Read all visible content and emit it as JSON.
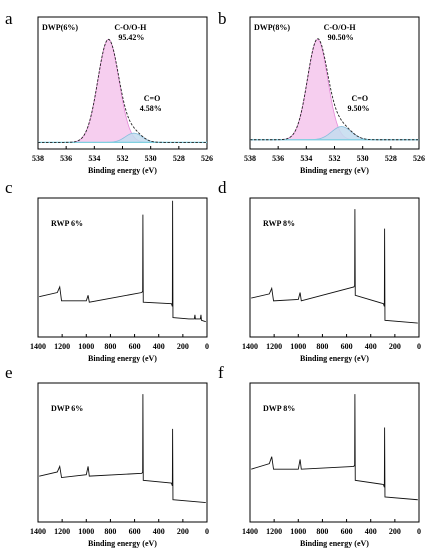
{
  "colors": {
    "pink_fill": "#f5c6ec",
    "pink_stroke": "#e48bd8",
    "blue_fill": "#c3dcee",
    "blue_stroke": "#86bddc",
    "baseline": "#7fd0e0",
    "envelope": "#222222"
  },
  "chart_data": [
    {
      "panel": "a",
      "type": "area",
      "title": "DWP(6%)",
      "xlabel": "Binding energy (eV)",
      "ylabel": "",
      "xlim": [
        538,
        526
      ],
      "x_reversed": true,
      "y_axis_ticks": false,
      "xticks": [
        "538",
        "536",
        "534",
        "532",
        "530",
        "528",
        "526"
      ],
      "baseline": 0.05,
      "peaks": [
        {
          "label": "C-O/O-H",
          "percent": "95.42%",
          "center": 533.0,
          "height": 0.78,
          "sigma": 0.75,
          "color": "pink"
        },
        {
          "label": "C=O",
          "percent": "4.58%",
          "center": 531.2,
          "height": 0.07,
          "sigma": 0.6,
          "color": "blue"
        }
      ]
    },
    {
      "panel": "b",
      "type": "area",
      "title": "DWP(8%)",
      "xlabel": "Binding energy (eV)",
      "ylabel": "",
      "xlim": [
        538,
        526
      ],
      "x_reversed": true,
      "y_axis_ticks": false,
      "xticks": [
        "538",
        "536",
        "534",
        "532",
        "530",
        "528",
        "526"
      ],
      "baseline": 0.07,
      "peaks": [
        {
          "label": "C-O/O-H",
          "percent": "90.50%",
          "center": 533.2,
          "height": 0.76,
          "sigma": 0.72,
          "color": "pink"
        },
        {
          "label": "C=O",
          "percent": "9.50%",
          "center": 531.5,
          "height": 0.1,
          "sigma": 0.7,
          "color": "blue"
        }
      ]
    },
    {
      "panel": "c",
      "type": "line",
      "title": "RWP 6%",
      "xlabel": "Binding energy (eV)",
      "ylabel": "",
      "xlim": [
        1400,
        0
      ],
      "x_reversed": true,
      "y_axis_ticks": false,
      "xticks": [
        "1400",
        "1200",
        "1000",
        "800",
        "600",
        "400",
        "200",
        "0"
      ],
      "spectrum": [
        [
          1390,
          0.29
        ],
        [
          1240,
          0.32
        ],
        [
          1220,
          0.36
        ],
        [
          1205,
          0.26
        ],
        [
          1000,
          0.26
        ],
        [
          985,
          0.3
        ],
        [
          975,
          0.25
        ],
        [
          540,
          0.32
        ],
        [
          533,
          0.33
        ],
        [
          531,
          0.88
        ],
        [
          528,
          0.25
        ],
        [
          295,
          0.24
        ],
        [
          287,
          0.22
        ],
        [
          285,
          0.98
        ],
        [
          282,
          0.14
        ],
        [
          150,
          0.13
        ],
        [
          105,
          0.13
        ],
        [
          100,
          0.16
        ],
        [
          96,
          0.13
        ],
        [
          55,
          0.13
        ],
        [
          50,
          0.16
        ],
        [
          46,
          0.12
        ],
        [
          10,
          0.11
        ]
      ]
    },
    {
      "panel": "d",
      "type": "line",
      "title": "RWP 8%",
      "xlabel": "Binding energy (eV)",
      "ylabel": "",
      "xlim": [
        1400,
        0
      ],
      "x_reversed": true,
      "y_axis_ticks": false,
      "xticks": [
        "1400",
        "1200",
        "1000",
        "800",
        "600",
        "400",
        "200",
        "0"
      ],
      "spectrum": [
        [
          1390,
          0.28
        ],
        [
          1240,
          0.31
        ],
        [
          1220,
          0.35
        ],
        [
          1205,
          0.26
        ],
        [
          1000,
          0.27
        ],
        [
          985,
          0.32
        ],
        [
          975,
          0.26
        ],
        [
          540,
          0.36
        ],
        [
          533,
          0.37
        ],
        [
          531,
          0.92
        ],
        [
          528,
          0.3
        ],
        [
          295,
          0.24
        ],
        [
          287,
          0.22
        ],
        [
          285,
          0.78
        ],
        [
          282,
          0.12
        ],
        [
          10,
          0.1
        ]
      ]
    },
    {
      "panel": "e",
      "type": "line",
      "title": "DWP 6%",
      "xlabel": "Binding energy (eV)",
      "ylabel": "",
      "xlim": [
        1400,
        0
      ],
      "x_reversed": true,
      "y_axis_ticks": false,
      "xticks": [
        "1400",
        "1200",
        "1000",
        "800",
        "600",
        "400",
        "200",
        "0"
      ],
      "spectrum": [
        [
          1390,
          0.33
        ],
        [
          1240,
          0.36
        ],
        [
          1220,
          0.4
        ],
        [
          1205,
          0.32
        ],
        [
          1000,
          0.34
        ],
        [
          985,
          0.4
        ],
        [
          975,
          0.33
        ],
        [
          540,
          0.35
        ],
        [
          533,
          0.36
        ],
        [
          531,
          0.92
        ],
        [
          528,
          0.3
        ],
        [
          295,
          0.28
        ],
        [
          287,
          0.26
        ],
        [
          285,
          0.67
        ],
        [
          282,
          0.16
        ],
        [
          10,
          0.14
        ]
      ]
    },
    {
      "panel": "f",
      "type": "line",
      "title": "DWP 8%",
      "xlabel": "Binding energy (eV)",
      "ylabel": "",
      "xlim": [
        1400,
        0
      ],
      "x_reversed": true,
      "y_axis_ticks": false,
      "xticks": [
        "1400",
        "1200",
        "1000",
        "800",
        "600",
        "400",
        "200",
        "0"
      ],
      "spectrum": [
        [
          1390,
          0.38
        ],
        [
          1240,
          0.42
        ],
        [
          1220,
          0.47
        ],
        [
          1205,
          0.38
        ],
        [
          1000,
          0.38
        ],
        [
          985,
          0.45
        ],
        [
          975,
          0.38
        ],
        [
          540,
          0.4
        ],
        [
          533,
          0.41
        ],
        [
          531,
          0.92
        ],
        [
          528,
          0.3
        ],
        [
          295,
          0.27
        ],
        [
          287,
          0.25
        ],
        [
          285,
          0.68
        ],
        [
          282,
          0.18
        ],
        [
          10,
          0.16
        ]
      ]
    }
  ]
}
